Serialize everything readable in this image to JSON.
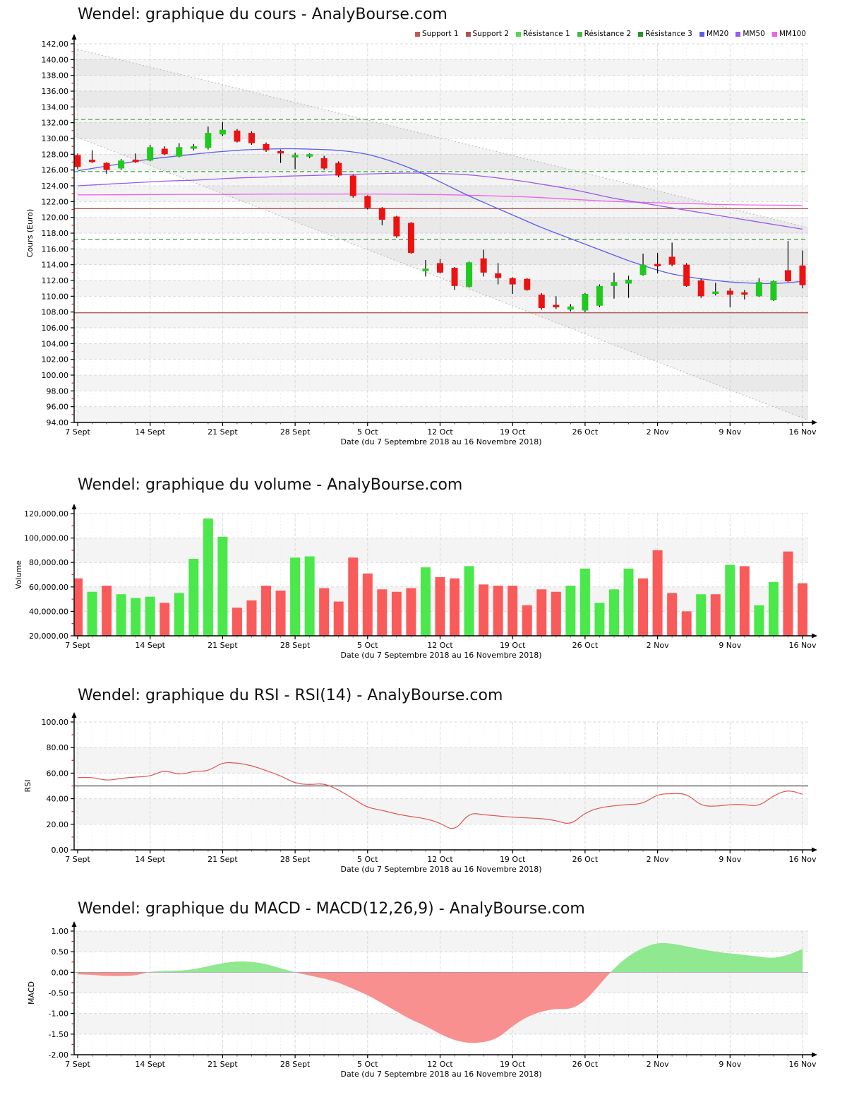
{
  "page": {
    "background": "#ffffff"
  },
  "charts": {
    "price": {
      "title": "Wendel: graphique du cours - AnalyBourse.com"
    },
    "volume": {
      "title": "Wendel: graphique du volume - AnalyBourse.com"
    },
    "rsi": {
      "title": "Wendel: graphique du RSI - RSI(14) - AnalyBourse.com"
    },
    "macd": {
      "title": "Wendel: graphique du MACD - MACD(12,26,9) - AnalyBourse.com"
    }
  },
  "legend": [
    {
      "label": "Support 1",
      "color": "#c05a5a"
    },
    {
      "label": "Support 2",
      "color": "#a85454"
    },
    {
      "label": "Résistance 1",
      "color": "#57d657"
    },
    {
      "label": "Résistance 2",
      "color": "#46b846"
    },
    {
      "label": "Résistance 3",
      "color": "#2f8f2f"
    },
    {
      "label": "MM20",
      "color": "#5c5cf0"
    },
    {
      "label": "MM50",
      "color": "#9b59f0"
    },
    {
      "label": "MM100",
      "color": "#f060f0"
    }
  ],
  "colors": {
    "candle_up": "#1fc91f",
    "candle_down": "#ee1111",
    "wick": "#000000",
    "vol_up": "#4ae84a",
    "vol_down": "#f95b5b",
    "mm20": "#5c5cf0",
    "mm50": "#9b59f0",
    "mm100": "#f060f0",
    "support": "#b05050",
    "resistance": "#3aa33a",
    "resistance_dark": "#2e8b2e",
    "rsi_line": "#e05555",
    "rsi_mid": "#444444",
    "macd_up": "#90e890",
    "macd_down": "#f89090",
    "grid": "#d9d9d9",
    "grid_minor": "#f0f0f0",
    "stripe": "#f4f4f4",
    "axis": "#000000",
    "tick_minor": "#cc2222",
    "channel_line": "#b5b5b5",
    "channel_fill": "rgba(120,120,120,0.08)"
  },
  "chart_data": [
    {
      "type": "candlestick",
      "title": "Wendel: graphique du cours - AnalyBourse.com",
      "xlabel": "Date (du 7 Septembre 2018 au 16 Novembre 2018)",
      "ylabel": "Cours (Euro)",
      "ylim": [
        94,
        142
      ],
      "ytick_step": 2,
      "yticklabels": [
        "142.00",
        "140.00",
        "138.00",
        "136.00",
        "134.00",
        "132.00",
        "130.00",
        "128.00",
        "126.00",
        "124.00",
        "122.00",
        "120.00",
        "118.00",
        "116.00",
        "114.00",
        "112.00",
        "110.00",
        "108.00",
        "106.00",
        "104.00",
        "102.00",
        "100.00",
        "98.00",
        "96.00",
        "94.00"
      ],
      "xticklabels": [
        "7 Sept",
        "14 Sept",
        "21 Sept",
        "28 Sept",
        "5 Oct",
        "12 Oct",
        "19 Oct",
        "26 Oct",
        "2 Nov",
        "9 Nov",
        "16 Nov"
      ],
      "dates": [
        "07/09",
        "10/09",
        "11/09",
        "12/09",
        "13/09",
        "14/09",
        "17/09",
        "18/09",
        "19/09",
        "20/09",
        "21/09",
        "24/09",
        "25/09",
        "26/09",
        "27/09",
        "28/09",
        "01/10",
        "02/10",
        "03/10",
        "04/10",
        "05/10",
        "08/10",
        "09/10",
        "10/10",
        "11/10",
        "12/10",
        "15/10",
        "16/10",
        "17/10",
        "18/10",
        "19/10",
        "22/10",
        "23/10",
        "24/10",
        "25/10",
        "26/10",
        "29/10",
        "30/10",
        "31/10",
        "01/11",
        "02/11",
        "05/11",
        "06/11",
        "07/11",
        "08/11",
        "09/11",
        "12/11",
        "13/11",
        "14/11",
        "15/11",
        "16/11"
      ],
      "ohlc": [
        [
          127.9,
          128.1,
          126.1,
          126.4
        ],
        [
          127.3,
          128.5,
          126.9,
          127.0
        ],
        [
          126.9,
          127.0,
          125.5,
          126.0
        ],
        [
          126.2,
          127.4,
          126.0,
          127.2
        ],
        [
          127.3,
          128.1,
          126.9,
          127.0
        ],
        [
          127.2,
          129.2,
          127.1,
          128.9
        ],
        [
          128.7,
          129.0,
          127.9,
          128.0
        ],
        [
          127.7,
          129.4,
          127.6,
          128.9
        ],
        [
          128.7,
          129.3,
          128.5,
          129.0
        ],
        [
          128.8,
          131.5,
          128.6,
          130.7
        ],
        [
          130.5,
          132.1,
          130.3,
          131.1
        ],
        [
          131.0,
          131.2,
          129.5,
          129.6
        ],
        [
          130.7,
          130.9,
          129.2,
          129.4
        ],
        [
          129.3,
          129.5,
          128.3,
          128.5
        ],
        [
          128.4,
          128.6,
          126.9,
          128.1
        ],
        [
          127.6,
          128.2,
          126.1,
          127.9
        ],
        [
          127.7,
          128.1,
          127.5,
          128.0
        ],
        [
          127.5,
          127.8,
          126.0,
          126.2
        ],
        [
          126.9,
          127.1,
          125.1,
          125.3
        ],
        [
          125.3,
          125.4,
          122.5,
          122.7
        ],
        [
          122.7,
          122.8,
          121.0,
          121.2
        ],
        [
          121.2,
          121.3,
          119.0,
          119.7
        ],
        [
          120.1,
          120.2,
          117.4,
          117.6
        ],
        [
          119.3,
          119.4,
          115.4,
          115.5
        ],
        [
          113.2,
          114.6,
          112.5,
          113.5
        ],
        [
          114.2,
          114.7,
          112.9,
          113.0
        ],
        [
          113.6,
          113.7,
          110.8,
          111.3
        ],
        [
          111.2,
          114.4,
          111.1,
          114.3
        ],
        [
          114.8,
          115.9,
          112.5,
          113.0
        ],
        [
          112.9,
          114.2,
          111.5,
          112.3
        ],
        [
          112.3,
          112.4,
          110.3,
          111.5
        ],
        [
          112.2,
          112.3,
          110.7,
          110.8
        ],
        [
          110.2,
          110.4,
          108.3,
          108.5
        ],
        [
          108.9,
          110.0,
          108.4,
          108.6
        ],
        [
          108.3,
          109.0,
          108.1,
          108.7
        ],
        [
          108.2,
          110.4,
          108.0,
          110.3
        ],
        [
          108.8,
          111.5,
          108.6,
          111.3
        ],
        [
          111.3,
          113.0,
          109.7,
          111.8
        ],
        [
          111.6,
          112.6,
          109.8,
          112.1
        ],
        [
          112.7,
          115.4,
          112.6,
          114.0
        ],
        [
          114.1,
          115.5,
          112.9,
          113.8
        ],
        [
          115.0,
          116.8,
          113.8,
          114.0
        ],
        [
          114.0,
          114.2,
          111.2,
          111.3
        ],
        [
          112.0,
          112.2,
          109.8,
          110.0
        ],
        [
          110.3,
          111.7,
          110.1,
          110.6
        ],
        [
          110.7,
          111.0,
          108.6,
          110.2
        ],
        [
          110.5,
          110.8,
          109.6,
          110.2
        ],
        [
          110.0,
          112.3,
          109.9,
          111.8
        ],
        [
          109.5,
          112.0,
          109.4,
          111.9
        ],
        [
          113.3,
          117.0,
          111.8,
          111.9
        ],
        [
          113.9,
          115.8,
          111.0,
          111.4
        ]
      ],
      "ma": {
        "mm20": [
          125.9,
          126.2,
          126.5,
          126.8,
          127.1,
          127.4,
          127.6,
          127.8,
          128.0,
          128.2,
          128.35,
          128.5,
          128.6,
          128.65,
          128.7,
          128.7,
          128.65,
          128.6,
          128.5,
          128.3,
          128.0,
          127.5,
          126.9,
          126.2,
          125.4,
          124.5,
          123.6,
          122.7,
          121.9,
          121.1,
          120.3,
          119.5,
          118.7,
          118.0,
          117.3,
          116.6,
          115.9,
          115.2,
          114.5,
          113.9,
          113.3,
          112.8,
          112.5,
          112.2,
          112.0,
          111.8,
          111.7,
          111.6,
          111.6,
          111.7,
          111.9
        ],
        "mm50": [
          124.0,
          124.1,
          124.2,
          124.3,
          124.4,
          124.5,
          124.6,
          124.65,
          124.7,
          124.8,
          124.9,
          125.0,
          125.05,
          125.1,
          125.2,
          125.25,
          125.3,
          125.35,
          125.4,
          125.45,
          125.5,
          125.55,
          125.6,
          125.6,
          125.6,
          125.55,
          125.5,
          125.4,
          125.2,
          125.0,
          124.75,
          124.5,
          124.2,
          123.9,
          123.6,
          123.2,
          122.8,
          122.4,
          122.1,
          121.8,
          121.5,
          121.2,
          120.9,
          120.6,
          120.3,
          120.0,
          119.7,
          119.4,
          119.1,
          118.8,
          118.5
        ],
        "mm100": [
          122.85,
          122.85,
          122.86,
          122.87,
          122.88,
          122.89,
          122.9,
          122.9,
          122.9,
          122.9,
          122.9,
          122.92,
          122.93,
          122.94,
          122.95,
          122.95,
          122.95,
          122.95,
          122.95,
          122.95,
          122.95,
          122.94,
          122.93,
          122.92,
          122.9,
          122.88,
          122.85,
          122.8,
          122.75,
          122.7,
          122.65,
          122.6,
          122.5,
          122.4,
          122.3,
          122.2,
          122.1,
          122.0,
          121.95,
          121.9,
          121.85,
          121.8,
          121.75,
          121.7,
          121.65,
          121.6,
          121.58,
          121.56,
          121.54,
          121.52,
          121.5
        ]
      },
      "levels": {
        "support1": 121.1,
        "support2": 107.9,
        "resistance1": 117.2,
        "resistance2": 125.8,
        "resistance3": 132.4
      },
      "channel": {
        "upper_start": 141.4,
        "upper_end": 118.7,
        "lower_start": 130.3,
        "lower_end": 94.3
      }
    },
    {
      "type": "bar",
      "title": "Wendel: graphique du volume - AnalyBourse.com",
      "xlabel": "Date (du 7 Septembre 2018 au 16 Novembre 2018)",
      "ylabel": "Volume",
      "ylim": [
        20000,
        120000
      ],
      "ytick_step": 20000,
      "yticklabels": [
        "120,000.00",
        "100,000.00",
        "80,000.00",
        "60,000.00",
        "40,000.00",
        "20,000.00"
      ],
      "xticklabels": [
        "7 Sept",
        "14 Sept",
        "21 Sept",
        "28 Sept",
        "5 Oct",
        "12 Oct",
        "19 Oct",
        "26 Oct",
        "2 Nov",
        "9 Nov",
        "16 Nov"
      ],
      "values": [
        67000,
        56000,
        61000,
        54000,
        51000,
        52000,
        47000,
        55000,
        83000,
        116000,
        101000,
        43000,
        49000,
        61000,
        57000,
        84000,
        85000,
        59000,
        48000,
        84000,
        71000,
        58000,
        56000,
        59000,
        76000,
        68000,
        67000,
        77000,
        62000,
        61000,
        61000,
        45000,
        58000,
        56000,
        61000,
        75000,
        47000,
        58000,
        75000,
        67000,
        90000,
        55000,
        40000,
        54000,
        54000,
        78000,
        77000,
        45000,
        64000,
        89000,
        63000
      ],
      "directions": [
        "down",
        "up",
        "down",
        "up",
        "up",
        "up",
        "down",
        "up",
        "up",
        "up",
        "up",
        "down",
        "down",
        "down",
        "down",
        "up",
        "up",
        "down",
        "down",
        "down",
        "down",
        "down",
        "down",
        "down",
        "up",
        "down",
        "down",
        "up",
        "down",
        "down",
        "down",
        "down",
        "down",
        "down",
        "up",
        "up",
        "up",
        "up",
        "up",
        "down",
        "down",
        "down",
        "down",
        "up",
        "down",
        "up",
        "down",
        "up",
        "up",
        "down",
        "down"
      ]
    },
    {
      "type": "line",
      "title": "Wendel: graphique du RSI - RSI(14) - AnalyBourse.com",
      "series_name": "RSI(14)",
      "xlabel": "Date (du 7 Septembre 2018 au 16 Novembre 2018)",
      "ylabel": "RSI",
      "ylim": [
        0,
        100
      ],
      "ytick_step": 20,
      "yticklabels": [
        "100.00",
        "80.00",
        "60.00",
        "40.00",
        "20.00",
        "0.00"
      ],
      "xticklabels": [
        "7 Sept",
        "14 Sept",
        "21 Sept",
        "28 Sept",
        "5 Oct",
        "12 Oct",
        "19 Oct",
        "26 Oct",
        "2 Nov",
        "9 Nov",
        "16 Nov"
      ],
      "hline": 50,
      "values": [
        56.5,
        57,
        54,
        56,
        57,
        57.5,
        62.5,
        58.5,
        61.5,
        61.5,
        68.5,
        68,
        66,
        62,
        58,
        52,
        51,
        52,
        47,
        40,
        33,
        31,
        28,
        26,
        24.5,
        21,
        14.5,
        29,
        27.5,
        26.5,
        25.5,
        25,
        24.5,
        23,
        19.5,
        29,
        33,
        34.5,
        35.5,
        36,
        43.5,
        44,
        44,
        34.5,
        34,
        35.5,
        35.5,
        34,
        42.5,
        47,
        43.5
      ]
    },
    {
      "type": "area",
      "title": "Wendel: graphique du MACD - MACD(12,26,9) - AnalyBourse.com",
      "series_name": "MACD(12,26,9)",
      "xlabel": "Date (du 7 Septembre 2018 au 16 Novembre 2018)",
      "ylabel": "MACD",
      "ylim": [
        -2,
        1
      ],
      "ytick_step": 0.5,
      "yticklabels": [
        "1.00",
        "0.50",
        "0.00",
        "-0.50",
        "-1.00",
        "-1.50",
        "-2.00"
      ],
      "xticklabels": [
        "7 Sept",
        "14 Sept",
        "21 Sept",
        "28 Sept",
        "5 Oct",
        "12 Oct",
        "19 Oct",
        "26 Oct",
        "2 Nov",
        "9 Nov",
        "16 Nov"
      ],
      "values": [
        -0.05,
        -0.06,
        -0.09,
        -0.09,
        -0.08,
        0.02,
        0.03,
        0.04,
        0.07,
        0.15,
        0.22,
        0.27,
        0.26,
        0.2,
        0.1,
        0.0,
        -0.08,
        -0.15,
        -0.25,
        -0.4,
        -0.55,
        -0.75,
        -0.95,
        -1.15,
        -1.3,
        -1.5,
        -1.65,
        -1.72,
        -1.7,
        -1.6,
        -1.3,
        -1.08,
        -0.95,
        -0.88,
        -0.9,
        -0.7,
        -0.3,
        0.1,
        0.4,
        0.6,
        0.72,
        0.7,
        0.63,
        0.56,
        0.5,
        0.46,
        0.42,
        0.38,
        0.34,
        0.42,
        0.57
      ]
    }
  ]
}
